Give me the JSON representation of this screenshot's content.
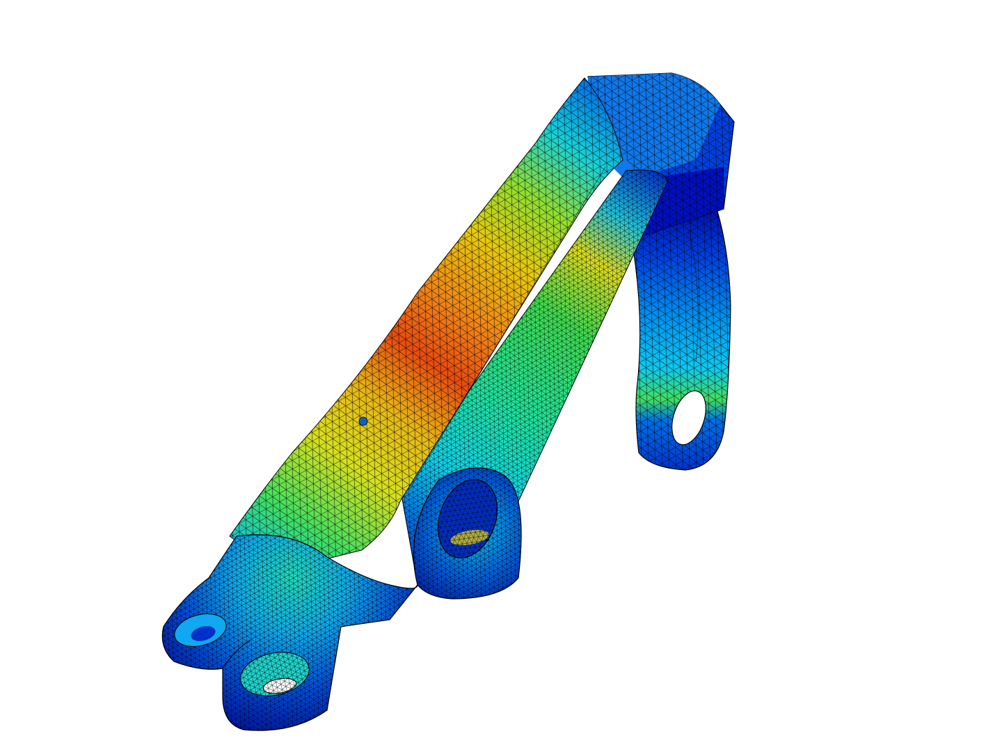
{
  "viewport": {
    "background": "#ffffff"
  },
  "model": {
    "subject": "fea-stress-contour-bracket",
    "mesh_edge_color": "#000000",
    "contour_colormap": [
      "#00109a",
      "#0030d8",
      "#0078f0",
      "#00c8f0",
      "#20e0b0",
      "#40e040",
      "#c8e020",
      "#f0c810",
      "#f08010",
      "#e03010"
    ],
    "icons": {
      "part": "bracket-part-icon",
      "mesh": "tetra-mesh-icon",
      "hole": "bolt-hole-icon"
    }
  }
}
